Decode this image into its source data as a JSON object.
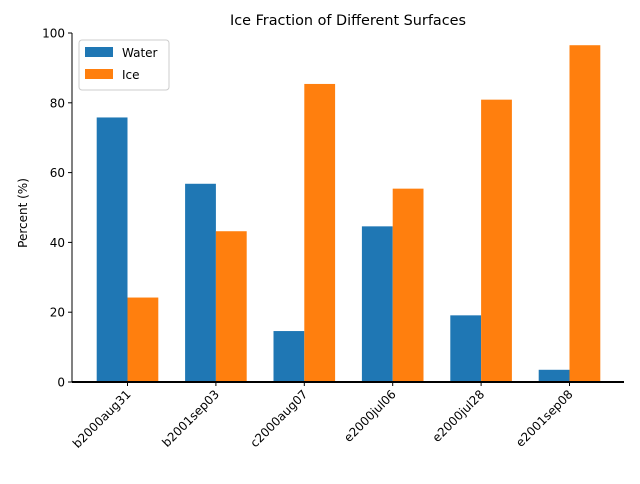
{
  "chart_data": {
    "type": "bar",
    "title": "Ice Fraction of Different Surfaces",
    "xlabel": "",
    "ylabel": "Percent (%)",
    "ylim": [
      0,
      100
    ],
    "yticks": [
      "0",
      "20",
      "40",
      "60",
      "80",
      "100"
    ],
    "categories": [
      "b2000aug31",
      "b2001sep03",
      "c2000aug07",
      "e2000jul06",
      "e2000jul28",
      "e2001sep08"
    ],
    "series": [
      {
        "name": "Water",
        "color": "#1f77b4",
        "values": [
          75.8,
          56.8,
          14.6,
          44.6,
          19.1,
          3.5
        ]
      },
      {
        "name": "Ice",
        "color": "#ff7f0e",
        "values": [
          24.2,
          43.2,
          85.4,
          55.4,
          80.9,
          96.5
        ]
      }
    ],
    "legend": "top-left",
    "grid": false
  }
}
